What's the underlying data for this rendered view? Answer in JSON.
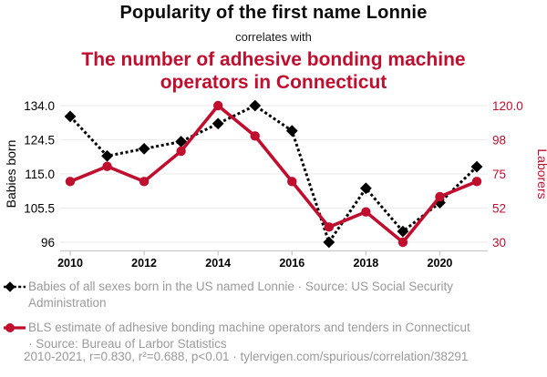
{
  "header": {
    "title": "Popularity of the first name Lonnie",
    "subtitle": "correlates with",
    "secondary_title": "The number of adhesive bonding machine operators in Connecticut"
  },
  "colors": {
    "accent_red": "#bf0e2e",
    "series_black": "#000000",
    "legend_gray": "#9a9a9a",
    "gridline": "#ededed",
    "axis_line": "#c9c9c9"
  },
  "chart_data": {
    "type": "line",
    "x": [
      2010,
      2011,
      2012,
      2013,
      2014,
      2015,
      2016,
      2017,
      2018,
      2019,
      2020,
      2021
    ],
    "x_tick_labels": [
      "2010",
      "2012",
      "2014",
      "2016",
      "2018",
      "2020"
    ],
    "series": [
      {
        "name": "Babies of all sexes born in the US named Lonnie",
        "axis": "left",
        "color": "#000000",
        "line_style": "dashed",
        "marker": "diamond",
        "values": [
          131,
          120,
          122,
          124,
          129,
          134,
          127,
          96,
          111,
          99,
          107,
          117
        ]
      },
      {
        "name": "BLS estimate of adhesive bonding machine operators and tenders in Connecticut",
        "axis": "right",
        "color": "#bf0e2e",
        "line_style": "solid",
        "marker": "circle",
        "values": [
          70,
          80,
          70,
          90,
          120,
          100,
          70,
          40,
          50,
          30,
          60,
          70
        ]
      }
    ],
    "left_axis": {
      "label": "Babies born",
      "tick_labels_top_to_bottom": [
        "134.0",
        "124.5",
        "115.0",
        "105.5",
        "96"
      ],
      "min": 96,
      "max": 134
    },
    "right_axis": {
      "label": "Laborers",
      "tick_labels_top_to_bottom": [
        "120.0",
        "98",
        "75",
        "52",
        "30"
      ],
      "min": 30,
      "max": 120
    },
    "grid": true,
    "legend_position": "bottom"
  },
  "legend": {
    "items": [
      {
        "marker": "diamond-dashed",
        "label_lines": [
          "Babies of all sexes born in the US named Lonnie · Source: US Social Security",
          "Administration"
        ]
      },
      {
        "marker": "circle-solid",
        "label_lines": [
          "BLS estimate of adhesive bonding machine operators and tenders in Connecticut",
          "· Source: Bureau of Larbor Statistics"
        ]
      }
    ]
  },
  "footer": {
    "text": "2010-2021, r=0.830, r²=0.688, p<0.01 · tylervigen.com/spurious/correlation/38291"
  }
}
